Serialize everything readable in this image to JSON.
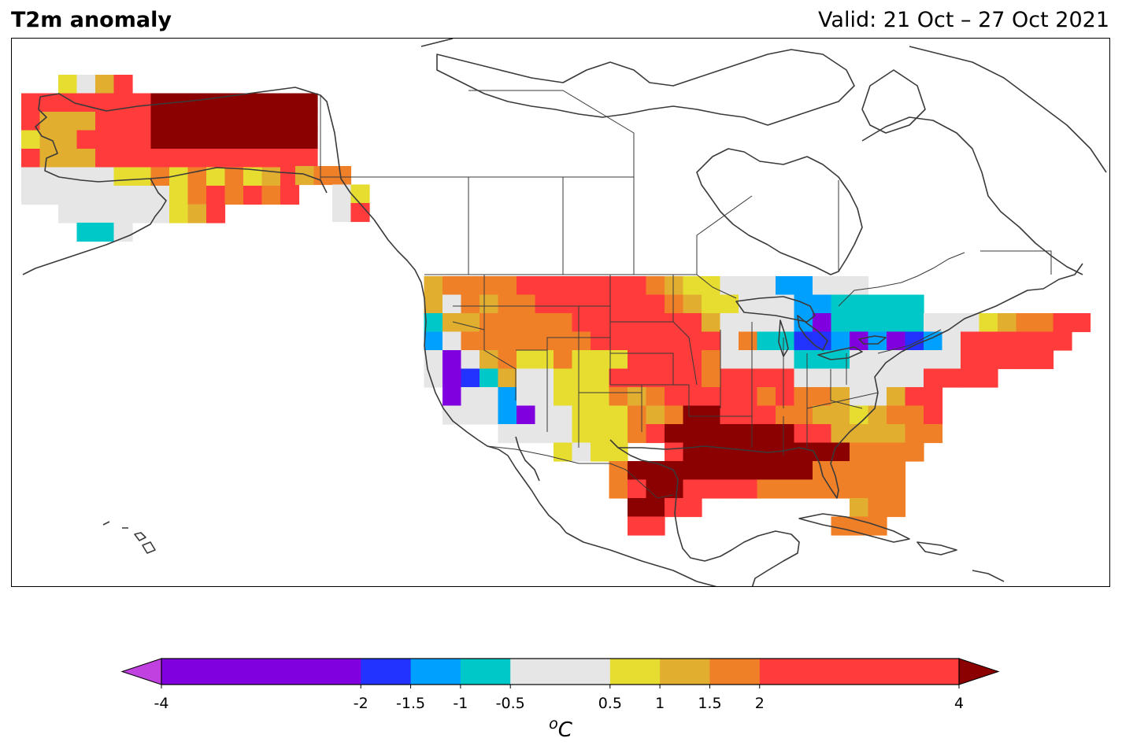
{
  "header": {
    "title": "T2m anomaly",
    "valid": "Valid: 21 Oct – 27 Oct 2021"
  },
  "colorbar": {
    "unit_base": "o",
    "unit_main": "C",
    "ticks": [
      "-4",
      "-2",
      "-1.5",
      "-1",
      "-0.5",
      "0.5",
      "1",
      "1.5",
      "2",
      "4"
    ],
    "tick_values": [
      -4,
      -2,
      -1.5,
      -1,
      -0.5,
      0.5,
      1,
      1.5,
      2,
      4
    ],
    "bins": [
      {
        "lo": -4,
        "hi": -2,
        "color": "#8000e0"
      },
      {
        "lo": -2,
        "hi": -1.5,
        "color": "#2233ff"
      },
      {
        "lo": -1.5,
        "hi": -1,
        "color": "#00a0ff"
      },
      {
        "lo": -1,
        "hi": -0.5,
        "color": "#00c8c8"
      },
      {
        "lo": -0.5,
        "hi": 0.5,
        "color": "#e6e6e6"
      },
      {
        "lo": 0.5,
        "hi": 1,
        "color": "#e6dd30"
      },
      {
        "lo": 1,
        "hi": 1.5,
        "color": "#e2ae30"
      },
      {
        "lo": 1.5,
        "hi": 2,
        "color": "#f08028"
      },
      {
        "lo": 2,
        "hi": 4,
        "color": "#ff3b3b"
      }
    ],
    "under_color": "#c040e0",
    "over_color": "#8b0000"
  },
  "legend": {
    "K": "#8b0000",
    "R": "#ff3b3b",
    "O": "#f08028",
    "A": "#e2ae30",
    "Y": "#e6dd30",
    "G": "#e6e6e6",
    "C": "#00c8c8",
    "L": "#00a0ff",
    "B": "#2233ff",
    "P": "#8000e0"
  },
  "alaska_grid": [
    "..YGAR...........",
    "RRRRRRRKKKKKKKKK.",
    "RAAARRRKKKKKKKKK.",
    "YAARRRRKKKKKKKKK.",
    "RAAARRRRRRRRRRRR.",
    "GGGGGYYOYOYOYAR..",
    "GGGGGGGGYOROROR..",
    "..GGGGGGYAR......",
    "...CCG..........."
  ],
  "bc_grid": [
    "AOO.",
    "..GY",
    "..GR"
  ],
  "conus_grid": [
    ".AOOOORRRRRRROAYYGGGLLGGG........",
    ".AGOAOORRRRRRROAYYGGGLLCCCCC.....",
    ".CAAOOOOORRRRRRRAGGGGLPCCCCCGGGYAOORR",
    ".LGOOOOOOORRRRRRRGOCCBBLPLPBLGRRRRRR",
    ".GPGAOYYOYYYRRRROGGGGCCCGGGGGGRRRRR.",
    ".GPBCAGGYYYRRRRRORRRRGGGGGGGRRRR....",
    "..PGGLGGYYYOAORRRRROROOAGGARR.......",
    "..GGGLPGGYYYOAOKKRRROOAAYAOOR.......",
    ".....GGGGYYYORKKKKKKKRRAAAAOO.......",
    "........YGYY..RKKKKKKKKKOOOO........",
    "...........OKKKKKKKKKKOOOOO.........",
    "...........ORKKRRRROOOOOOOO.........",
    "............KKRR........AOO.........",
    "............RR.........OOO.........."
  ]
}
